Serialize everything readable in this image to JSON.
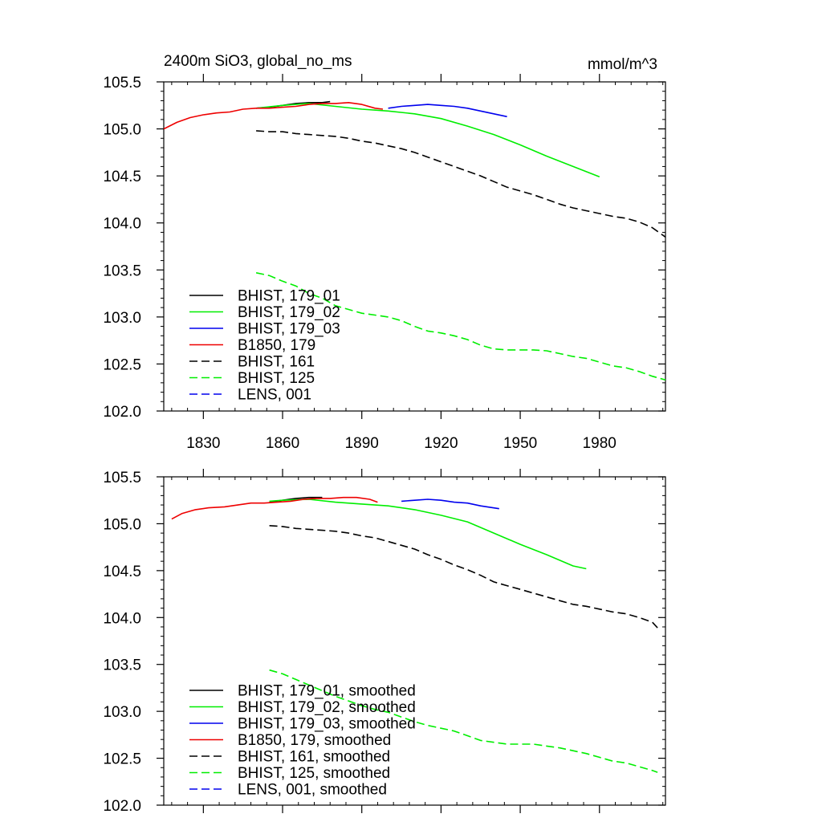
{
  "figure": {
    "title_left": "2400m SiO3, global_no_ms",
    "title_right": "mmol/m^3"
  },
  "chart_data": [
    {
      "type": "line",
      "xlim": [
        1815,
        2005
      ],
      "ylim": [
        102.0,
        105.5
      ],
      "x_tick_labels": [
        "1830",
        "1860",
        "1890",
        "1920",
        "1950",
        "1980"
      ],
      "x_ticks": [
        1830,
        1860,
        1890,
        1920,
        1950,
        1980
      ],
      "y_tick_labels": [
        "102.0",
        "102.5",
        "103.0",
        "103.5",
        "104.0",
        "104.5",
        "105.0",
        "105.5"
      ],
      "y_ticks": [
        102.0,
        102.5,
        103.0,
        103.5,
        104.0,
        104.5,
        105.0,
        105.5
      ],
      "grid": false,
      "legend_position": "bottom-left",
      "series": [
        {
          "name": "BHIST, 179_01",
          "color": "#000000",
          "dash": "solid",
          "points": [
            [
              1850,
              105.22
            ],
            [
              1855,
              105.23
            ],
            [
              1860,
              105.25
            ],
            [
              1865,
              105.27
            ],
            [
              1870,
              105.28
            ],
            [
              1875,
              105.28
            ],
            [
              1878,
              105.29
            ]
          ]
        },
        {
          "name": "BHIST, 179_02",
          "color": "#00ee00",
          "dash": "solid",
          "points": [
            [
              1850,
              105.22
            ],
            [
              1860,
              105.25
            ],
            [
              1870,
              105.27
            ],
            [
              1880,
              105.24
            ],
            [
              1890,
              105.21
            ],
            [
              1900,
              105.19
            ],
            [
              1910,
              105.16
            ],
            [
              1920,
              105.11
            ],
            [
              1930,
              105.03
            ],
            [
              1940,
              104.94
            ],
            [
              1950,
              104.83
            ],
            [
              1960,
              104.71
            ],
            [
              1970,
              104.6
            ],
            [
              1980,
              104.49
            ]
          ]
        },
        {
          "name": "BHIST, 179_03",
          "color": "#0000ee",
          "dash": "solid",
          "points": [
            [
              1900,
              105.22
            ],
            [
              1905,
              105.24
            ],
            [
              1910,
              105.25
            ],
            [
              1915,
              105.26
            ],
            [
              1920,
              105.25
            ],
            [
              1925,
              105.24
            ],
            [
              1930,
              105.22
            ],
            [
              1935,
              105.19
            ],
            [
              1940,
              105.16
            ],
            [
              1945,
              105.13
            ]
          ]
        },
        {
          "name": "B1850, 179",
          "color": "#ee0000",
          "dash": "solid",
          "points": [
            [
              1815,
              105.0
            ],
            [
              1820,
              105.07
            ],
            [
              1825,
              105.12
            ],
            [
              1830,
              105.15
            ],
            [
              1835,
              105.17
            ],
            [
              1840,
              105.18
            ],
            [
              1845,
              105.21
            ],
            [
              1850,
              105.22
            ],
            [
              1855,
              105.22
            ],
            [
              1860,
              105.23
            ],
            [
              1865,
              105.24
            ],
            [
              1870,
              105.26
            ],
            [
              1875,
              105.27
            ],
            [
              1880,
              105.27
            ],
            [
              1885,
              105.28
            ],
            [
              1890,
              105.26
            ],
            [
              1895,
              105.22
            ],
            [
              1898,
              105.21
            ]
          ]
        },
        {
          "name": "BHIST, 161",
          "color": "#000000",
          "dash": "dashed",
          "points": [
            [
              1850,
              104.98
            ],
            [
              1855,
              104.97
            ],
            [
              1860,
              104.97
            ],
            [
              1865,
              104.95
            ],
            [
              1870,
              104.94
            ],
            [
              1875,
              104.93
            ],
            [
              1880,
              104.92
            ],
            [
              1885,
              104.9
            ],
            [
              1890,
              104.87
            ],
            [
              1895,
              104.85
            ],
            [
              1900,
              104.82
            ],
            [
              1905,
              104.79
            ],
            [
              1910,
              104.75
            ],
            [
              1915,
              104.7
            ],
            [
              1920,
              104.65
            ],
            [
              1925,
              104.6
            ],
            [
              1930,
              104.55
            ],
            [
              1935,
              104.5
            ],
            [
              1940,
              104.44
            ],
            [
              1945,
              104.38
            ],
            [
              1950,
              104.34
            ],
            [
              1955,
              104.3
            ],
            [
              1960,
              104.25
            ],
            [
              1965,
              104.2
            ],
            [
              1970,
              104.16
            ],
            [
              1975,
              104.13
            ],
            [
              1980,
              104.1
            ],
            [
              1985,
              104.07
            ],
            [
              1990,
              104.05
            ],
            [
              1995,
              104.01
            ],
            [
              2000,
              103.95
            ],
            [
              2005,
              103.85
            ]
          ]
        },
        {
          "name": "BHIST, 125",
          "color": "#00ee00",
          "dash": "dashed",
          "points": [
            [
              1850,
              103.47
            ],
            [
              1855,
              103.44
            ],
            [
              1860,
              103.38
            ],
            [
              1865,
              103.33
            ],
            [
              1870,
              103.25
            ],
            [
              1875,
              103.2
            ],
            [
              1880,
              103.12
            ],
            [
              1885,
              103.08
            ],
            [
              1890,
              103.04
            ],
            [
              1895,
              103.02
            ],
            [
              1900,
              103.0
            ],
            [
              1905,
              102.96
            ],
            [
              1910,
              102.9
            ],
            [
              1915,
              102.85
            ],
            [
              1920,
              102.83
            ],
            [
              1925,
              102.8
            ],
            [
              1930,
              102.76
            ],
            [
              1935,
              102.7
            ],
            [
              1940,
              102.66
            ],
            [
              1945,
              102.65
            ],
            [
              1950,
              102.65
            ],
            [
              1955,
              102.65
            ],
            [
              1960,
              102.64
            ],
            [
              1965,
              102.61
            ],
            [
              1970,
              102.58
            ],
            [
              1975,
              102.56
            ],
            [
              1980,
              102.52
            ],
            [
              1985,
              102.48
            ],
            [
              1990,
              102.46
            ],
            [
              1995,
              102.42
            ],
            [
              2000,
              102.37
            ],
            [
              2005,
              102.33
            ]
          ]
        },
        {
          "name": "LENS, 001",
          "color": "#0000ee",
          "dash": "dashed",
          "points": []
        }
      ]
    },
    {
      "type": "line",
      "xlim": [
        1815,
        2005
      ],
      "ylim": [
        102.0,
        105.5
      ],
      "x_ticks": [
        1830,
        1860,
        1890,
        1920,
        1950,
        1980
      ],
      "y_tick_labels": [
        "102.0",
        "102.5",
        "103.0",
        "103.5",
        "104.0",
        "104.5",
        "105.0",
        "105.5"
      ],
      "y_ticks": [
        102.0,
        102.5,
        103.0,
        103.5,
        104.0,
        104.5,
        105.0,
        105.5
      ],
      "grid": false,
      "legend_position": "bottom-left",
      "series": [
        {
          "name": "BHIST, 179_01, smoothed",
          "color": "#000000",
          "dash": "solid",
          "points": [
            [
              1855,
              105.23
            ],
            [
              1860,
              105.25
            ],
            [
              1865,
              105.27
            ],
            [
              1870,
              105.28
            ],
            [
              1875,
              105.28
            ]
          ]
        },
        {
          "name": "BHIST, 179_02, smoothed",
          "color": "#00ee00",
          "dash": "solid",
          "points": [
            [
              1855,
              105.24
            ],
            [
              1860,
              105.25
            ],
            [
              1870,
              105.26
            ],
            [
              1880,
              105.23
            ],
            [
              1890,
              105.21
            ],
            [
              1900,
              105.19
            ],
            [
              1910,
              105.15
            ],
            [
              1920,
              105.09
            ],
            [
              1930,
              105.02
            ],
            [
              1940,
              104.9
            ],
            [
              1950,
              104.78
            ],
            [
              1960,
              104.67
            ],
            [
              1970,
              104.55
            ],
            [
              1975,
              104.52
            ]
          ]
        },
        {
          "name": "BHIST, 179_03, smoothed",
          "color": "#0000ee",
          "dash": "solid",
          "points": [
            [
              1905,
              105.24
            ],
            [
              1910,
              105.25
            ],
            [
              1915,
              105.26
            ],
            [
              1920,
              105.25
            ],
            [
              1925,
              105.23
            ],
            [
              1930,
              105.22
            ],
            [
              1935,
              105.19
            ],
            [
              1942,
              105.16
            ]
          ]
        },
        {
          "name": "B1850, 179, smoothed",
          "color": "#ee0000",
          "dash": "solid",
          "points": [
            [
              1818,
              105.05
            ],
            [
              1822,
              105.11
            ],
            [
              1827,
              105.15
            ],
            [
              1832,
              105.17
            ],
            [
              1838,
              105.18
            ],
            [
              1843,
              105.2
            ],
            [
              1848,
              105.22
            ],
            [
              1853,
              105.22
            ],
            [
              1858,
              105.23
            ],
            [
              1863,
              105.24
            ],
            [
              1868,
              105.26
            ],
            [
              1873,
              105.27
            ],
            [
              1878,
              105.27
            ],
            [
              1883,
              105.28
            ],
            [
              1888,
              105.28
            ],
            [
              1893,
              105.26
            ],
            [
              1896,
              105.23
            ]
          ]
        },
        {
          "name": "BHIST, 161, smoothed",
          "color": "#000000",
          "dash": "dashed",
          "points": [
            [
              1855,
              104.98
            ],
            [
              1860,
              104.97
            ],
            [
              1865,
              104.95
            ],
            [
              1870,
              104.94
            ],
            [
              1875,
              104.93
            ],
            [
              1880,
              104.92
            ],
            [
              1885,
              104.9
            ],
            [
              1890,
              104.87
            ],
            [
              1895,
              104.85
            ],
            [
              1900,
              104.81
            ],
            [
              1905,
              104.77
            ],
            [
              1910,
              104.73
            ],
            [
              1915,
              104.67
            ],
            [
              1920,
              104.62
            ],
            [
              1925,
              104.56
            ],
            [
              1930,
              104.51
            ],
            [
              1935,
              104.45
            ],
            [
              1940,
              104.38
            ],
            [
              1945,
              104.34
            ],
            [
              1950,
              104.3
            ],
            [
              1955,
              104.26
            ],
            [
              1960,
              104.22
            ],
            [
              1965,
              104.18
            ],
            [
              1970,
              104.14
            ],
            [
              1975,
              104.12
            ],
            [
              1980,
              104.09
            ],
            [
              1985,
              104.06
            ],
            [
              1990,
              104.04
            ],
            [
              1995,
              104.0
            ],
            [
              2000,
              103.95
            ],
            [
              2002,
              103.89
            ]
          ]
        },
        {
          "name": "BHIST, 125, smoothed",
          "color": "#00ee00",
          "dash": "dashed",
          "points": [
            [
              1855,
              103.44
            ],
            [
              1860,
              103.4
            ],
            [
              1865,
              103.34
            ],
            [
              1870,
              103.28
            ],
            [
              1875,
              103.22
            ],
            [
              1880,
              103.16
            ],
            [
              1885,
              103.11
            ],
            [
              1890,
              103.06
            ],
            [
              1895,
              103.02
            ],
            [
              1900,
              102.99
            ],
            [
              1905,
              102.94
            ],
            [
              1910,
              102.89
            ],
            [
              1915,
              102.85
            ],
            [
              1920,
              102.82
            ],
            [
              1925,
              102.79
            ],
            [
              1930,
              102.74
            ],
            [
              1935,
              102.69
            ],
            [
              1940,
              102.67
            ],
            [
              1945,
              102.65
            ],
            [
              1950,
              102.65
            ],
            [
              1955,
              102.65
            ],
            [
              1960,
              102.63
            ],
            [
              1965,
              102.61
            ],
            [
              1970,
              102.58
            ],
            [
              1975,
              102.55
            ],
            [
              1980,
              102.51
            ],
            [
              1985,
              102.47
            ],
            [
              1990,
              102.45
            ],
            [
              1995,
              102.41
            ],
            [
              2000,
              102.37
            ],
            [
              2002,
              102.35
            ]
          ]
        },
        {
          "name": "LENS, 001, smoothed",
          "color": "#0000ee",
          "dash": "dashed",
          "points": []
        }
      ]
    }
  ]
}
